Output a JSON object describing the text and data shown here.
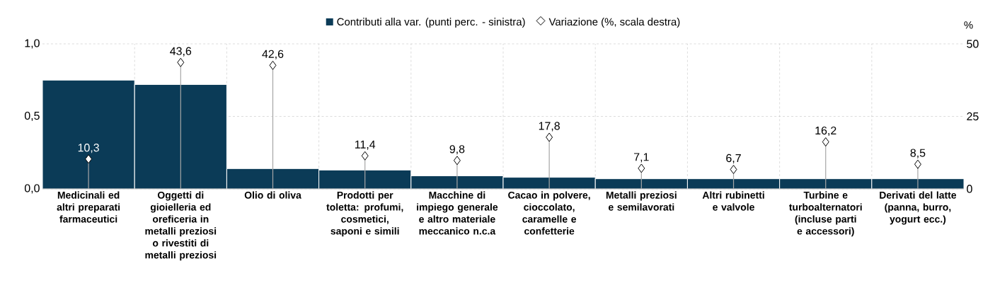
{
  "chart_data": {
    "type": "bar",
    "categories": [
      "Medicinali ed altri preparati farmaceutici",
      "Oggetti di gioielleria ed oreficeria in metalli preziosi o rivestiti di metalli preziosi",
      "Olio di oliva",
      "Prodotti per toletta: profumi, cosmetici, saponi e simili",
      "Macchine di impiego generale e altro materiale meccanico n.c.a",
      "Cacao in polvere, cioccolato, caramelle e confetterie",
      "Metalli preziosi e semilavorati",
      "Altri rubinetti e valvole",
      "Turbine e turboalternatori (incluse parti e accessori)",
      "Derivati del latte (panna, burro, yogurt ecc.)"
    ],
    "series": [
      {
        "name": "Contributi alla var. (punti perc. - sinistra)",
        "color": "#0b3b57",
        "values": [
          0.75,
          0.72,
          0.14,
          0.13,
          0.09,
          0.08,
          0.07,
          0.07,
          0.07,
          0.07
        ]
      },
      {
        "name": "Variazione (%, scala destra)",
        "type": "lollipop",
        "axis": "y2",
        "marker": "diamond",
        "color": "#ffffff",
        "values": [
          10.3,
          43.6,
          42.6,
          11.4,
          9.8,
          17.8,
          7.1,
          6.7,
          16.2,
          8.5
        ],
        "value_labels": [
          "10,3",
          "43,6",
          "42,6",
          "11,4",
          "9,8",
          "17,8",
          "7,1",
          "6,7",
          "16,2",
          "8,5"
        ]
      }
    ],
    "ylim": [
      0,
      1.0
    ],
    "yticks": [
      {
        "value": 0,
        "label": "0,0"
      },
      {
        "value": 0.5,
        "label": "0,5"
      },
      {
        "value": 1.0,
        "label": "1,0"
      }
    ],
    "y2lim": [
      0,
      50
    ],
    "y2ticks": [
      0,
      25,
      50
    ],
    "y2label": "%",
    "grid": true,
    "legend": "top"
  }
}
